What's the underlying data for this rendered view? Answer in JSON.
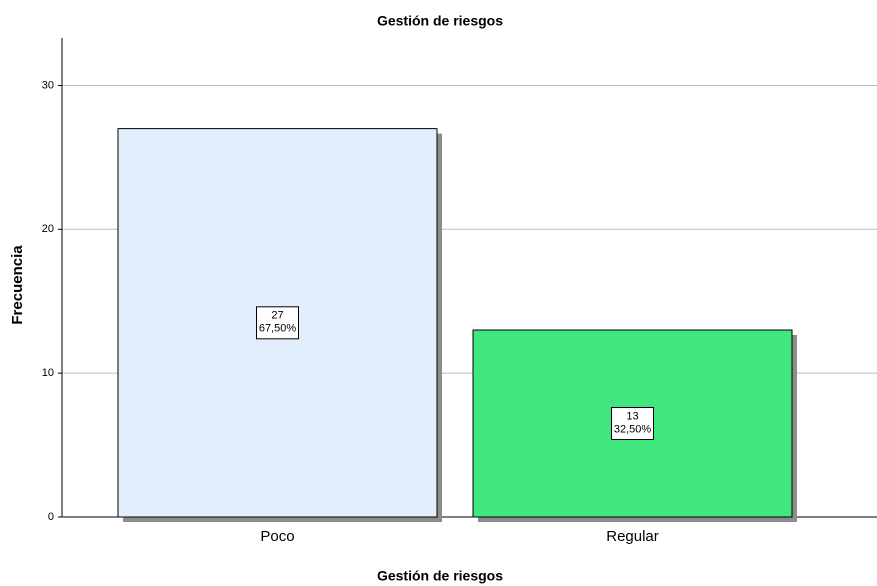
{
  "chart_data": {
    "type": "bar",
    "title": "Gestión de riesgos",
    "x_label": "Gestión de riesgos",
    "y_label": "Frecuencia",
    "categories": [
      "Poco",
      "Regular"
    ],
    "values": [
      27,
      13
    ],
    "percent_values": [
      67.5,
      32.5
    ],
    "percent_labels": [
      "67,50%",
      "32,50%"
    ],
    "colors": [
      "#e2eefb",
      "#42e67e"
    ],
    "ylim": [
      0,
      33.3
    ],
    "yticks": [
      0,
      10,
      20,
      30
    ],
    "grid": true
  }
}
